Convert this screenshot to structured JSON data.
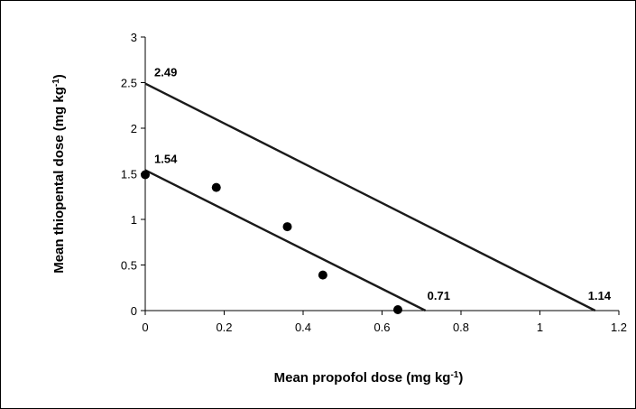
{
  "chart_data": {
    "type": "scatter",
    "title": "",
    "xlabel": "Mean propofol dose (mg kg",
    "xlabel_sup": "-1",
    "xlabel_end": ")",
    "ylabel": "Mean thiopental dose (mg kg",
    "ylabel_sup": "-1",
    "ylabel_end": ")",
    "xlim": [
      0,
      1.2
    ],
    "ylim": [
      0,
      3
    ],
    "xticks": [
      0,
      0.2,
      0.4,
      0.6,
      0.8,
      1,
      1.2
    ],
    "xtick_labels": [
      "0",
      "0.2",
      "0.4",
      "0.6",
      "0.8",
      "1",
      "1.2"
    ],
    "yticks": [
      0,
      0.5,
      1,
      1.5,
      2,
      2.5,
      3
    ],
    "ytick_labels": [
      "0",
      "0.5",
      "1",
      "1.5",
      "2",
      "2.5",
      "3"
    ],
    "grid": false,
    "points": [
      {
        "x": 0,
        "y": 1.49
      },
      {
        "x": 0.18,
        "y": 1.35
      },
      {
        "x": 0.36,
        "y": 0.92
      },
      {
        "x": 0.45,
        "y": 0.39
      },
      {
        "x": 0.64,
        "y": 0.01
      }
    ],
    "lines": [
      {
        "x1": 0,
        "y1": 2.49,
        "x2": 1.14,
        "y2": 0
      },
      {
        "x1": 0,
        "y1": 1.54,
        "x2": 0.71,
        "y2": 0
      }
    ],
    "annotations": [
      {
        "text": "2.49",
        "x": 0,
        "y": 2.49
      },
      {
        "text": "1.54",
        "x": 0,
        "y": 1.54
      },
      {
        "text": "0.71",
        "x": 0.71,
        "y": 0
      },
      {
        "text": "1.14",
        "x": 1.14,
        "y": 0
      }
    ]
  }
}
